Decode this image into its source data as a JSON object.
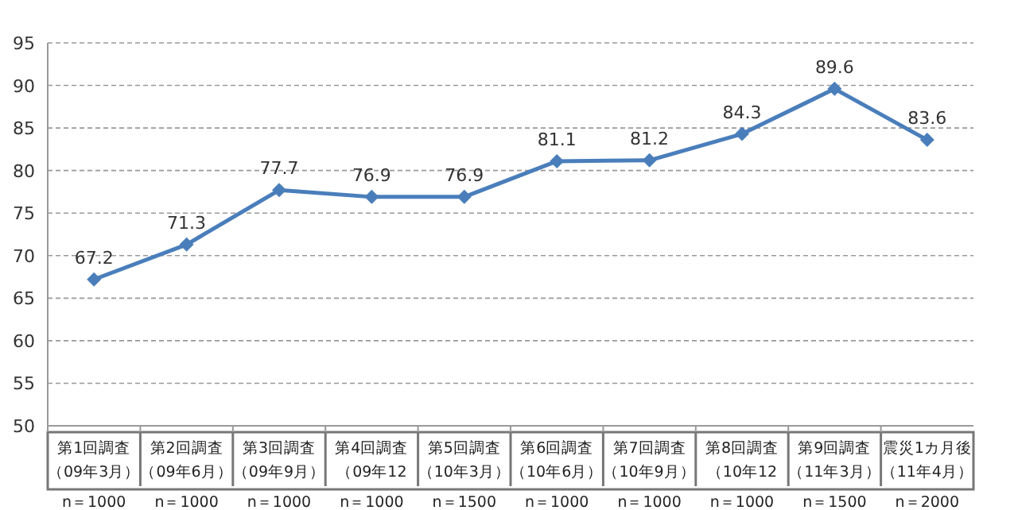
{
  "chart_data": {
    "type": "line",
    "categories": [
      "第1回調査（09年3月）",
      "第2回調査（09年6月）",
      "第3回調査（09年9月）",
      "第4回調査（09年12",
      "第5回調査（10年3月）",
      "第6回調査（10年6月）",
      "第7回調査（10年9月）",
      "第8回調査（10年12",
      "第9回調査（11年3月）",
      "震災1カ月後（11年4月）"
    ],
    "values": [
      67.2,
      71.3,
      77.7,
      76.9,
      76.9,
      81.1,
      81.2,
      84.3,
      89.6,
      83.6
    ],
    "color": "#4a7ebb",
    "marker": "diamond",
    "data_labels": true,
    "grid": "y",
    "line_style": "solid",
    "ylim": [
      50,
      95
    ],
    "yticks": [
      50,
      55,
      60,
      65,
      70,
      75,
      80,
      85,
      90,
      95
    ],
    "annotations": [
      "n＝1000",
      "n＝1000",
      "n＝1000",
      "n＝1000",
      "n＝1500",
      "n＝1000",
      "n＝1000",
      "n＝1000",
      "n＝1500",
      "n＝2000"
    ]
  }
}
